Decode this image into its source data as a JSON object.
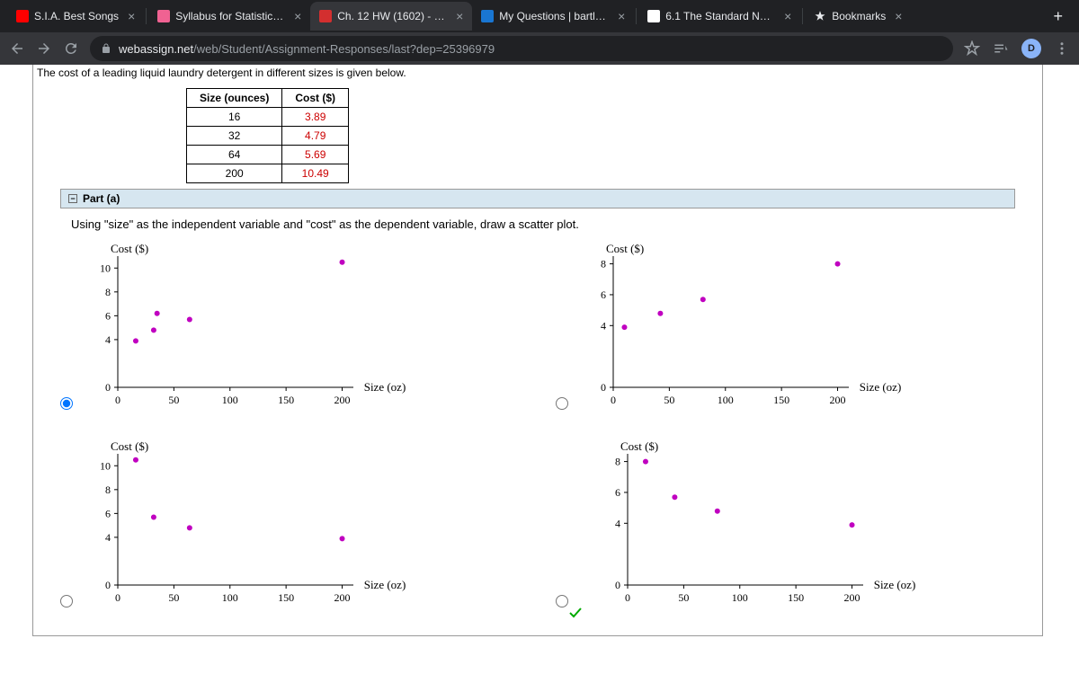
{
  "tabs": [
    {
      "title": "S.I.A. Best Songs",
      "icon_color": "#ff0000"
    },
    {
      "title": "Syllabus for Statistics v",
      "icon_color": "#f06292"
    },
    {
      "title": "Ch. 12 HW (1602) - Mat",
      "icon_color": "#d32f2f",
      "active": true
    },
    {
      "title": "My Questions | bartleby",
      "icon_color": "#1976d2"
    },
    {
      "title": "6.1 The Standard Norm",
      "icon_color": "#ffffff"
    },
    {
      "title": "Bookmarks",
      "icon_star": true
    }
  ],
  "url": {
    "host": "webassign.net",
    "path": "/web/Student/Assignment-Responses/last?dep=25396979"
  },
  "avatar_letter": "D",
  "intro_text": "The cost of a leading liquid laundry detergent in different sizes is given below.",
  "table": {
    "columns": [
      "Size (ounces)",
      "Cost ($)"
    ],
    "rows": [
      [
        "16",
        "3.89"
      ],
      [
        "32",
        "4.79"
      ],
      [
        "64",
        "5.69"
      ],
      [
        "200",
        "10.49"
      ]
    ]
  },
  "part_label": "Part (a)",
  "question": "Using \"size\" as the independent variable and \"cost\" as the dependent variable, draw a scatter plot.",
  "chart": {
    "type": "scatter",
    "xlabel": "Size (oz)",
    "ylabel": "Cost ($)",
    "xlim": [
      0,
      210
    ],
    "xticks": [
      0,
      50,
      100,
      150,
      200
    ],
    "axis_color": "#000000",
    "point_color": "#c000c0",
    "point_radius": 3,
    "label_fontsize": 13,
    "tick_fontsize": 12,
    "background_color": "#ffffff",
    "options": [
      {
        "selected": true,
        "correct": false,
        "ylim": [
          0,
          11
        ],
        "yticks": [
          0,
          4,
          6,
          8,
          10
        ],
        "points": [
          [
            16,
            3.89
          ],
          [
            32,
            4.79
          ],
          [
            35,
            6.2
          ],
          [
            64,
            5.69
          ],
          [
            200,
            10.49
          ]
        ]
      },
      {
        "selected": false,
        "correct": false,
        "ylim": [
          0,
          8.5
        ],
        "yticks": [
          0,
          4,
          6,
          8
        ],
        "points": [
          [
            10,
            3.89
          ],
          [
            42,
            4.79
          ],
          [
            80,
            5.69
          ],
          [
            200,
            8.0
          ]
        ]
      },
      {
        "selected": false,
        "correct": false,
        "ylim": [
          0,
          11
        ],
        "yticks": [
          0,
          4,
          6,
          8,
          10
        ],
        "points": [
          [
            16,
            10.49
          ],
          [
            32,
            5.69
          ],
          [
            64,
            4.79
          ],
          [
            200,
            3.89
          ]
        ]
      },
      {
        "selected": false,
        "correct": true,
        "ylim": [
          0,
          8.5
        ],
        "yticks": [
          0,
          4,
          6,
          8
        ],
        "points": [
          [
            16,
            8.0
          ],
          [
            42,
            5.69
          ],
          [
            80,
            4.79
          ],
          [
            200,
            3.89
          ]
        ]
      }
    ]
  }
}
